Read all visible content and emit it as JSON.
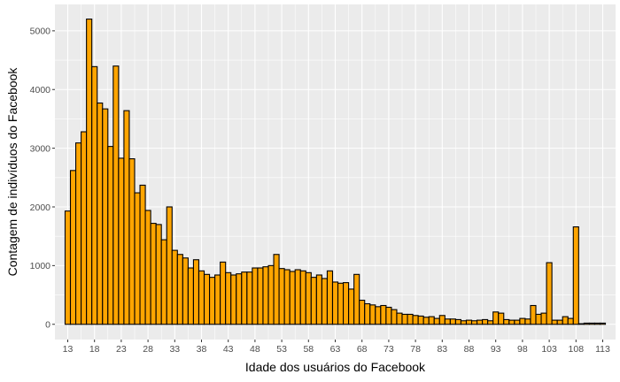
{
  "chart_data": {
    "type": "bar",
    "xlabel": "Idade dos usuários do Facebook",
    "ylabel": "Contagem de indivíduos do Facebook",
    "xlim": [
      10.6,
      115.4
    ],
    "ylim": [
      -260,
      5450
    ],
    "x_ticks": [
      13,
      18,
      23,
      28,
      33,
      38,
      43,
      48,
      53,
      58,
      63,
      68,
      73,
      78,
      83,
      88,
      93,
      98,
      103,
      108,
      113
    ],
    "y_ticks": [
      0,
      1000,
      2000,
      3000,
      4000,
      5000
    ],
    "grid": true,
    "colors": {
      "bar_fill": "#FFA500",
      "bar_stroke": "#000000",
      "panel": "#EBEBEB",
      "grid": "#FFFFFF"
    },
    "x": [
      13,
      14,
      15,
      16,
      17,
      18,
      19,
      20,
      21,
      22,
      23,
      24,
      25,
      26,
      27,
      28,
      29,
      30,
      31,
      32,
      33,
      34,
      35,
      36,
      37,
      38,
      39,
      40,
      41,
      42,
      43,
      44,
      45,
      46,
      47,
      48,
      49,
      50,
      51,
      52,
      53,
      54,
      55,
      56,
      57,
      58,
      59,
      60,
      61,
      62,
      63,
      64,
      65,
      66,
      67,
      68,
      69,
      70,
      71,
      72,
      73,
      74,
      75,
      76,
      77,
      78,
      79,
      80,
      81,
      82,
      83,
      84,
      85,
      86,
      87,
      88,
      89,
      90,
      91,
      92,
      93,
      94,
      95,
      96,
      97,
      98,
      99,
      100,
      101,
      102,
      103,
      104,
      105,
      106,
      107,
      108,
      109,
      110,
      111,
      112,
      113
    ],
    "values": [
      1930,
      2620,
      3090,
      3280,
      5200,
      4390,
      3770,
      3670,
      3030,
      4400,
      2830,
      3640,
      2820,
      2240,
      2370,
      1940,
      1720,
      1700,
      1440,
      2000,
      1260,
      1190,
      1130,
      960,
      1100,
      910,
      850,
      800,
      840,
      1060,
      880,
      840,
      860,
      890,
      890,
      960,
      960,
      980,
      1000,
      1190,
      950,
      930,
      900,
      930,
      910,
      880,
      800,
      840,
      780,
      910,
      720,
      700,
      710,
      600,
      850,
      410,
      350,
      330,
      300,
      320,
      290,
      250,
      190,
      170,
      170,
      150,
      140,
      120,
      130,
      100,
      150,
      90,
      90,
      80,
      60,
      70,
      60,
      70,
      80,
      60,
      210,
      190,
      80,
      70,
      70,
      100,
      90,
      320,
      170,
      190,
      1050,
      70,
      70,
      130,
      100,
      1660,
      10,
      20,
      20,
      20,
      20
    ]
  }
}
